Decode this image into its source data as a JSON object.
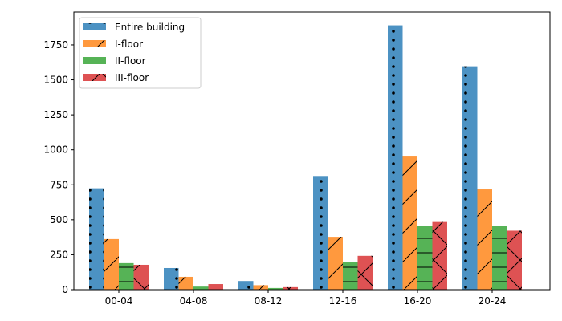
{
  "chart_data": {
    "type": "bar",
    "categories": [
      "00-04",
      "04-08",
      "08-12",
      "12-16",
      "16-20",
      "20-24"
    ],
    "series": [
      {
        "name": "Entire building",
        "values": [
          725,
          155,
          62,
          813,
          1890,
          1597
        ],
        "color": "#1f77b4",
        "hatch": "dots"
      },
      {
        "name": "I-floor",
        "values": [
          362,
          92,
          32,
          378,
          952,
          717
        ],
        "color": "#ff7f0e",
        "hatch": "diagonal"
      },
      {
        "name": "II-floor",
        "values": [
          190,
          22,
          12,
          195,
          458,
          458
        ],
        "color": "#2ca02c",
        "hatch": "horizontal"
      },
      {
        "name": "III-floor",
        "values": [
          178,
          40,
          18,
          242,
          484,
          422
        ],
        "color": "#d62728",
        "hatch": "cross"
      }
    ],
    "yticks": [
      "0",
      "250",
      "500",
      "750",
      "1000",
      "1250",
      "1500",
      "1750"
    ],
    "ylim": [
      0,
      1985
    ],
    "title": "",
    "xlabel": "",
    "ylabel": "",
    "legend_position": "top-left",
    "grid": false
  }
}
